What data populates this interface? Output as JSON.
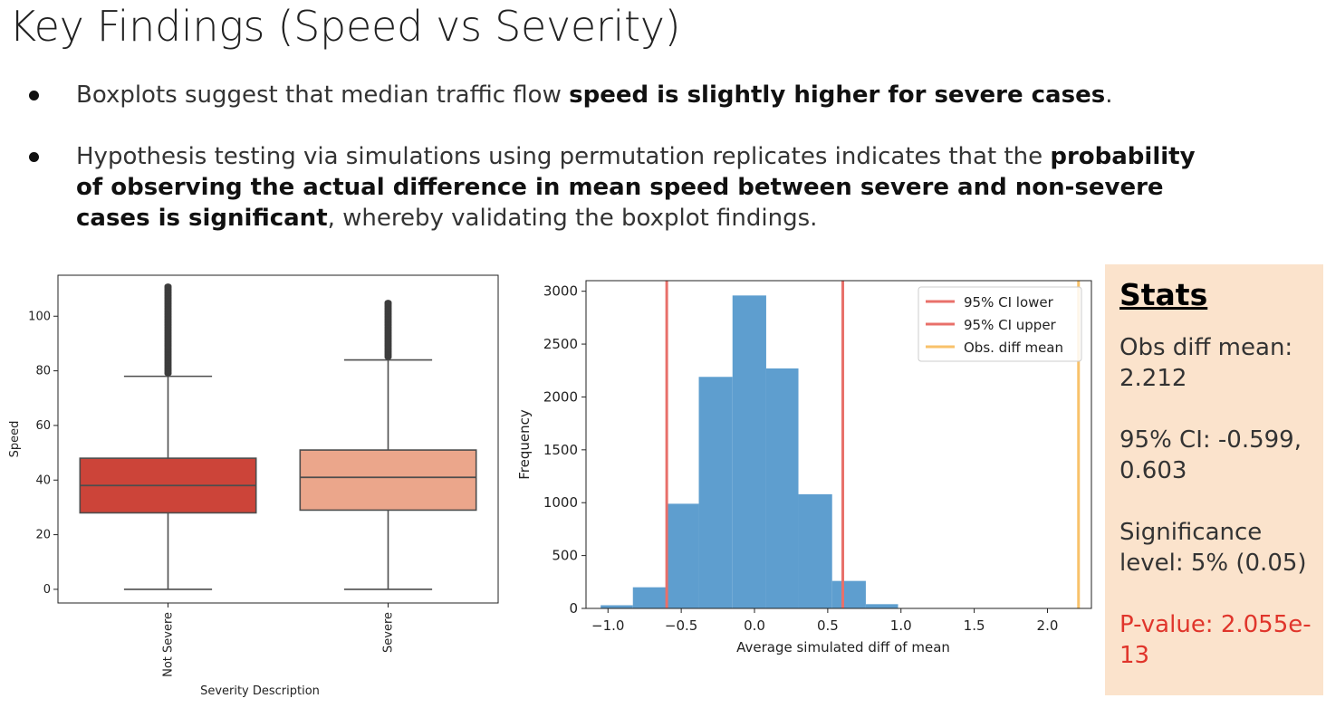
{
  "slide": {
    "title": "Key Findings (Speed vs Severity)",
    "bullets": [
      {
        "parts": [
          {
            "text": "Boxplots suggest that median traffic flow ",
            "bold": false
          },
          {
            "text": "speed is slightly higher for severe cases",
            "bold": true
          },
          {
            "text": ".",
            "bold": false
          }
        ]
      },
      {
        "parts": [
          {
            "text": "Hypothesis testing via simulations using permutation replicates indicates that the ",
            "bold": false
          },
          {
            "text": "probability of observing the actual difference in mean speed between severe and non-severe cases is significant",
            "bold": true
          },
          {
            "text": ", whereby validating the boxplot findings.",
            "bold": false
          }
        ]
      }
    ]
  },
  "stats": {
    "heading": "Stats",
    "obs_diff_mean": "Obs diff mean: 2.212",
    "ci": "95% CI: -0.599, 0.603",
    "significance": "Significance level: 5% (0.05)",
    "p_value": "P-value: 2.055e-13",
    "p_value_color": "#e0352b"
  },
  "chart_data": [
    {
      "type": "box",
      "xlabel": "Severity Description",
      "ylabel": "Speed",
      "ylim": [
        -5,
        115
      ],
      "yticks": [
        0,
        20,
        40,
        60,
        80,
        100
      ],
      "categories": [
        "Not Severe",
        "Severe"
      ],
      "boxes": [
        {
          "name": "Not Severe",
          "whisker_low": 0,
          "q1": 28,
          "median": 38,
          "q3": 48,
          "whisker_high": 78,
          "outliers_min": 79,
          "outliers_max": 111,
          "color": "#cc4439"
        },
        {
          "name": "Severe",
          "whisker_low": 0,
          "q1": 29,
          "median": 41,
          "q3": 51,
          "whisker_high": 84,
          "outliers_min": 85,
          "outliers_max": 105,
          "color": "#eba68b"
        }
      ]
    },
    {
      "type": "histogram",
      "xlabel": "Average simulated diff of mean",
      "ylabel": "Frequency",
      "xlim": [
        -1.15,
        2.3
      ],
      "ylim": [
        0,
        3100
      ],
      "xticks": [
        -1.0,
        -0.5,
        0.0,
        0.5,
        1.0,
        1.5,
        2.0
      ],
      "xtick_labels": [
        "−1.0",
        "−0.5",
        "0.0",
        "0.5",
        "1.0",
        "1.5",
        "2.0"
      ],
      "yticks": [
        0,
        500,
        1000,
        1500,
        2000,
        2500,
        3000
      ],
      "bin_edges": [
        -1.05,
        -0.83,
        -0.6,
        -0.38,
        -0.15,
        0.08,
        0.3,
        0.53,
        0.76,
        0.98
      ],
      "counts": [
        30,
        200,
        990,
        2190,
        2960,
        2270,
        1080,
        260,
        40
      ],
      "bar_color": "#5e9ecf",
      "vlines": [
        {
          "name": "95% CI lower",
          "x": -0.599,
          "color": "#e8706a"
        },
        {
          "name": "95% CI upper",
          "x": 0.603,
          "color": "#e8706a"
        },
        {
          "name": "Obs. diff mean",
          "x": 2.212,
          "color": "#f8c26a"
        }
      ],
      "legend": "top-right"
    }
  ]
}
